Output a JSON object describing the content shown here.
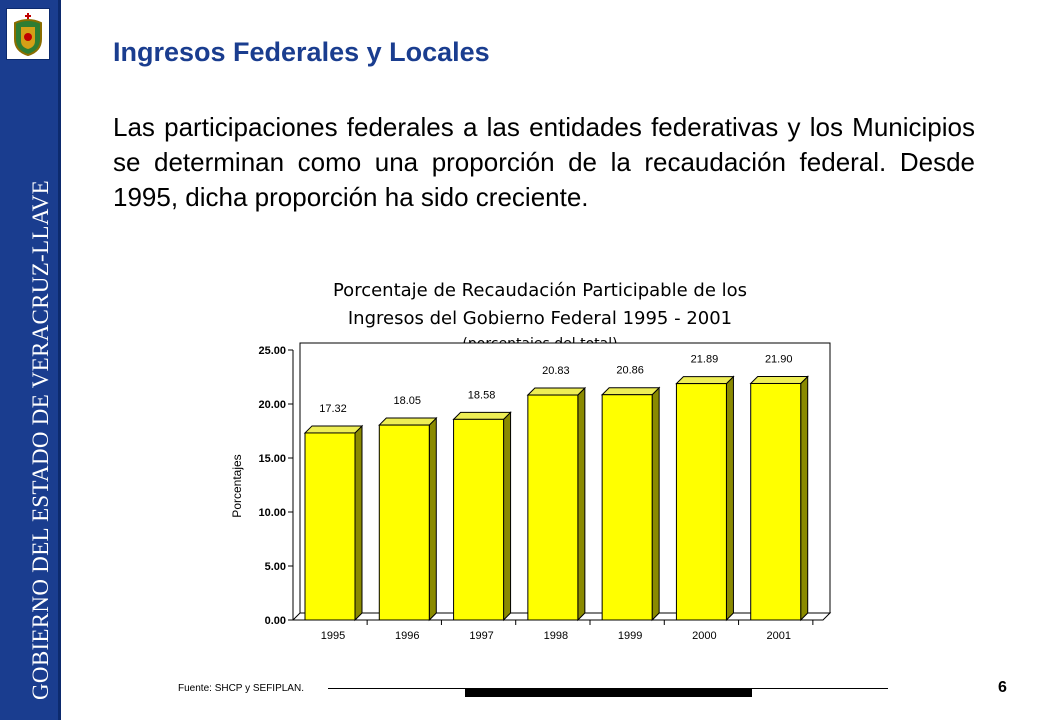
{
  "sidebar": {
    "vertical_text": "GOBIERNO DEL ESTADO DE VERACRUZ-LLAVE"
  },
  "slide": {
    "title": "Ingresos Federales y Locales",
    "body": "Las participaciones federales a las entidades federativas y los Municipios se determinan como una proporción de la recaudación federal. Desde 1995, dicha proporción ha sido creciente.",
    "source": "Fuente: SHCP y SEFIPLAN.",
    "page_number": "6"
  },
  "colors": {
    "sidebar": "#1a3d8f",
    "bar_front": "#ffff00",
    "bar_top": "#eeee55",
    "bar_side": "#8a8a00"
  },
  "chart_data": {
    "type": "bar",
    "title_line1": "Porcentaje de Recaudación Participable de los",
    "title_line2": "Ingresos del Gobierno Federal 1995 - 2001",
    "subtitle": "(porcentajes del total)",
    "ylabel": "Porcentajes",
    "xlabel": "",
    "categories": [
      "1995",
      "1996",
      "1997",
      "1998",
      "1999",
      "2000",
      "2001"
    ],
    "values": [
      17.32,
      18.05,
      18.58,
      20.83,
      20.86,
      21.89,
      21.9
    ],
    "value_labels": [
      "17.32",
      "18.05",
      "18.58",
      "20.83",
      "20.86",
      "21.89",
      "21.90"
    ],
    "yticks": [
      "0.00",
      "5.00",
      "10.00",
      "15.00",
      "20.00",
      "25.00"
    ],
    "ylim": [
      0,
      25
    ],
    "grid": false,
    "legend": "none"
  }
}
